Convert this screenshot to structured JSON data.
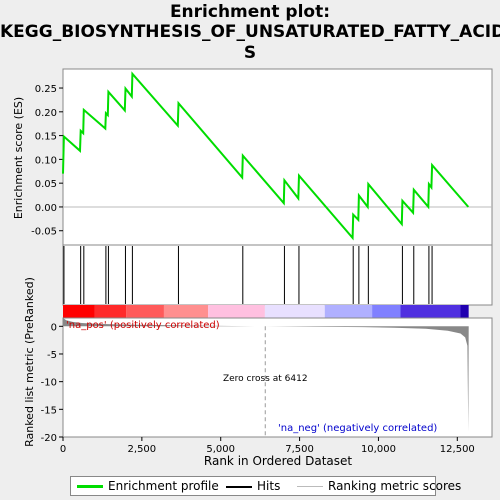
{
  "title_line1": "Enrichment plot:",
  "title_line2": "KEGG_BIOSYNTHESIS_OF_UNSATURATED_FATTY_ACID",
  "title_line3": "S",
  "legend": {
    "enrichment": "Enrichment profile",
    "hits": "Hits",
    "ranking": "Ranking metric scores"
  },
  "colors": {
    "enrichment_line": "#00dd00",
    "hits": "#000000",
    "ranking_fill": "#888888",
    "pos_text": "#cc0000",
    "neg_text": "#0000cc"
  },
  "chart_data": [
    {
      "type": "line",
      "ylabel": "Enrichment score (ES)",
      "xlim": [
        0,
        13600
      ],
      "ylim": [
        -0.08,
        0.29
      ],
      "yticks": [
        "0.25",
        "0.20",
        "0.15",
        "0.10",
        "0.05",
        "0.00",
        "-0.05"
      ],
      "ytick_values": [
        0.25,
        0.2,
        0.15,
        0.1,
        0.05,
        0.0,
        -0.05
      ],
      "grid": false,
      "points": [
        [
          0,
          0.07
        ],
        [
          30,
          0.148
        ],
        [
          540,
          0.118
        ],
        [
          560,
          0.16
        ],
        [
          640,
          0.155
        ],
        [
          660,
          0.204
        ],
        [
          1340,
          0.165
        ],
        [
          1360,
          0.197
        ],
        [
          1420,
          0.193
        ],
        [
          1440,
          0.242
        ],
        [
          1960,
          0.203
        ],
        [
          1980,
          0.249
        ],
        [
          2180,
          0.232
        ],
        [
          2200,
          0.28
        ],
        [
          3640,
          0.171
        ],
        [
          3660,
          0.218
        ],
        [
          5680,
          0.062
        ],
        [
          5700,
          0.108
        ],
        [
          7000,
          0.008
        ],
        [
          7020,
          0.056
        ],
        [
          7460,
          0.018
        ],
        [
          7480,
          0.066
        ],
        [
          9180,
          -0.065
        ],
        [
          9200,
          -0.016
        ],
        [
          9360,
          -0.027
        ],
        [
          9380,
          0.024
        ],
        [
          9660,
          0.0
        ],
        [
          9680,
          0.048
        ],
        [
          10740,
          -0.036
        ],
        [
          10760,
          0.013
        ],
        [
          11100,
          -0.012
        ],
        [
          11120,
          0.036
        ],
        [
          11580,
          0.0
        ],
        [
          11600,
          0.048
        ],
        [
          11680,
          0.041
        ],
        [
          11700,
          0.088
        ],
        [
          12850,
          0.0
        ]
      ],
      "hits": [
        30,
        560,
        660,
        1360,
        1440,
        1980,
        2200,
        3660,
        5700,
        7020,
        7480,
        9200,
        9380,
        9680,
        10760,
        11120,
        11600,
        11700
      ]
    },
    {
      "type": "area",
      "xlabel": "Rank in Ordered Dataset",
      "ylabel": "Ranked list metric (PreRanked)",
      "xlim": [
        0,
        13600
      ],
      "ylim": [
        -20,
        1.5
      ],
      "xticks": [
        "0",
        "2,500",
        "5,000",
        "7,500",
        "10,000",
        "12,500"
      ],
      "xtick_values": [
        0,
        2500,
        5000,
        7500,
        10000,
        12500
      ],
      "yticks": [
        "0",
        "-5",
        "-10",
        "-15",
        "-20"
      ],
      "ytick_values": [
        0,
        -5,
        -10,
        -15,
        -20
      ],
      "zero_cross": 6412,
      "zero_cross_label": "Zero cross at 6412",
      "pos_label": "'na_pos' (positively correlated)",
      "neg_label": "'na_neg' (negatively correlated)",
      "metric_curve": [
        [
          0,
          1.5
        ],
        [
          100,
          1.1
        ],
        [
          300,
          0.8
        ],
        [
          600,
          0.6
        ],
        [
          1000,
          0.45
        ],
        [
          2000,
          0.3
        ],
        [
          3500,
          0.18
        ],
        [
          5000,
          0.08
        ],
        [
          6412,
          0.0
        ],
        [
          8000,
          -0.08
        ],
        [
          9500,
          -0.15
        ],
        [
          10500,
          -0.25
        ],
        [
          11500,
          -0.45
        ],
        [
          12200,
          -0.8
        ],
        [
          12600,
          -1.3
        ],
        [
          12750,
          -2.0
        ],
        [
          12820,
          -3.5
        ],
        [
          12850,
          -19.0
        ],
        [
          12860,
          0.0
        ]
      ]
    }
  ],
  "colorbar": [
    {
      "end": 1000,
      "color": "#ff0000"
    },
    {
      "end": 2000,
      "color": "#ff2a2a"
    },
    {
      "end": 3200,
      "color": "#ff5a5a"
    },
    {
      "end": 4600,
      "color": "#ff8f8f"
    },
    {
      "end": 6400,
      "color": "#ffc0e0"
    },
    {
      "end": 8300,
      "color": "#e8e0ff"
    },
    {
      "end": 9800,
      "color": "#b0b0ff"
    },
    {
      "end": 10700,
      "color": "#8080ff"
    },
    {
      "end": 12600,
      "color": "#5030e0"
    },
    {
      "end": 12860,
      "color": "#2000b0"
    }
  ]
}
